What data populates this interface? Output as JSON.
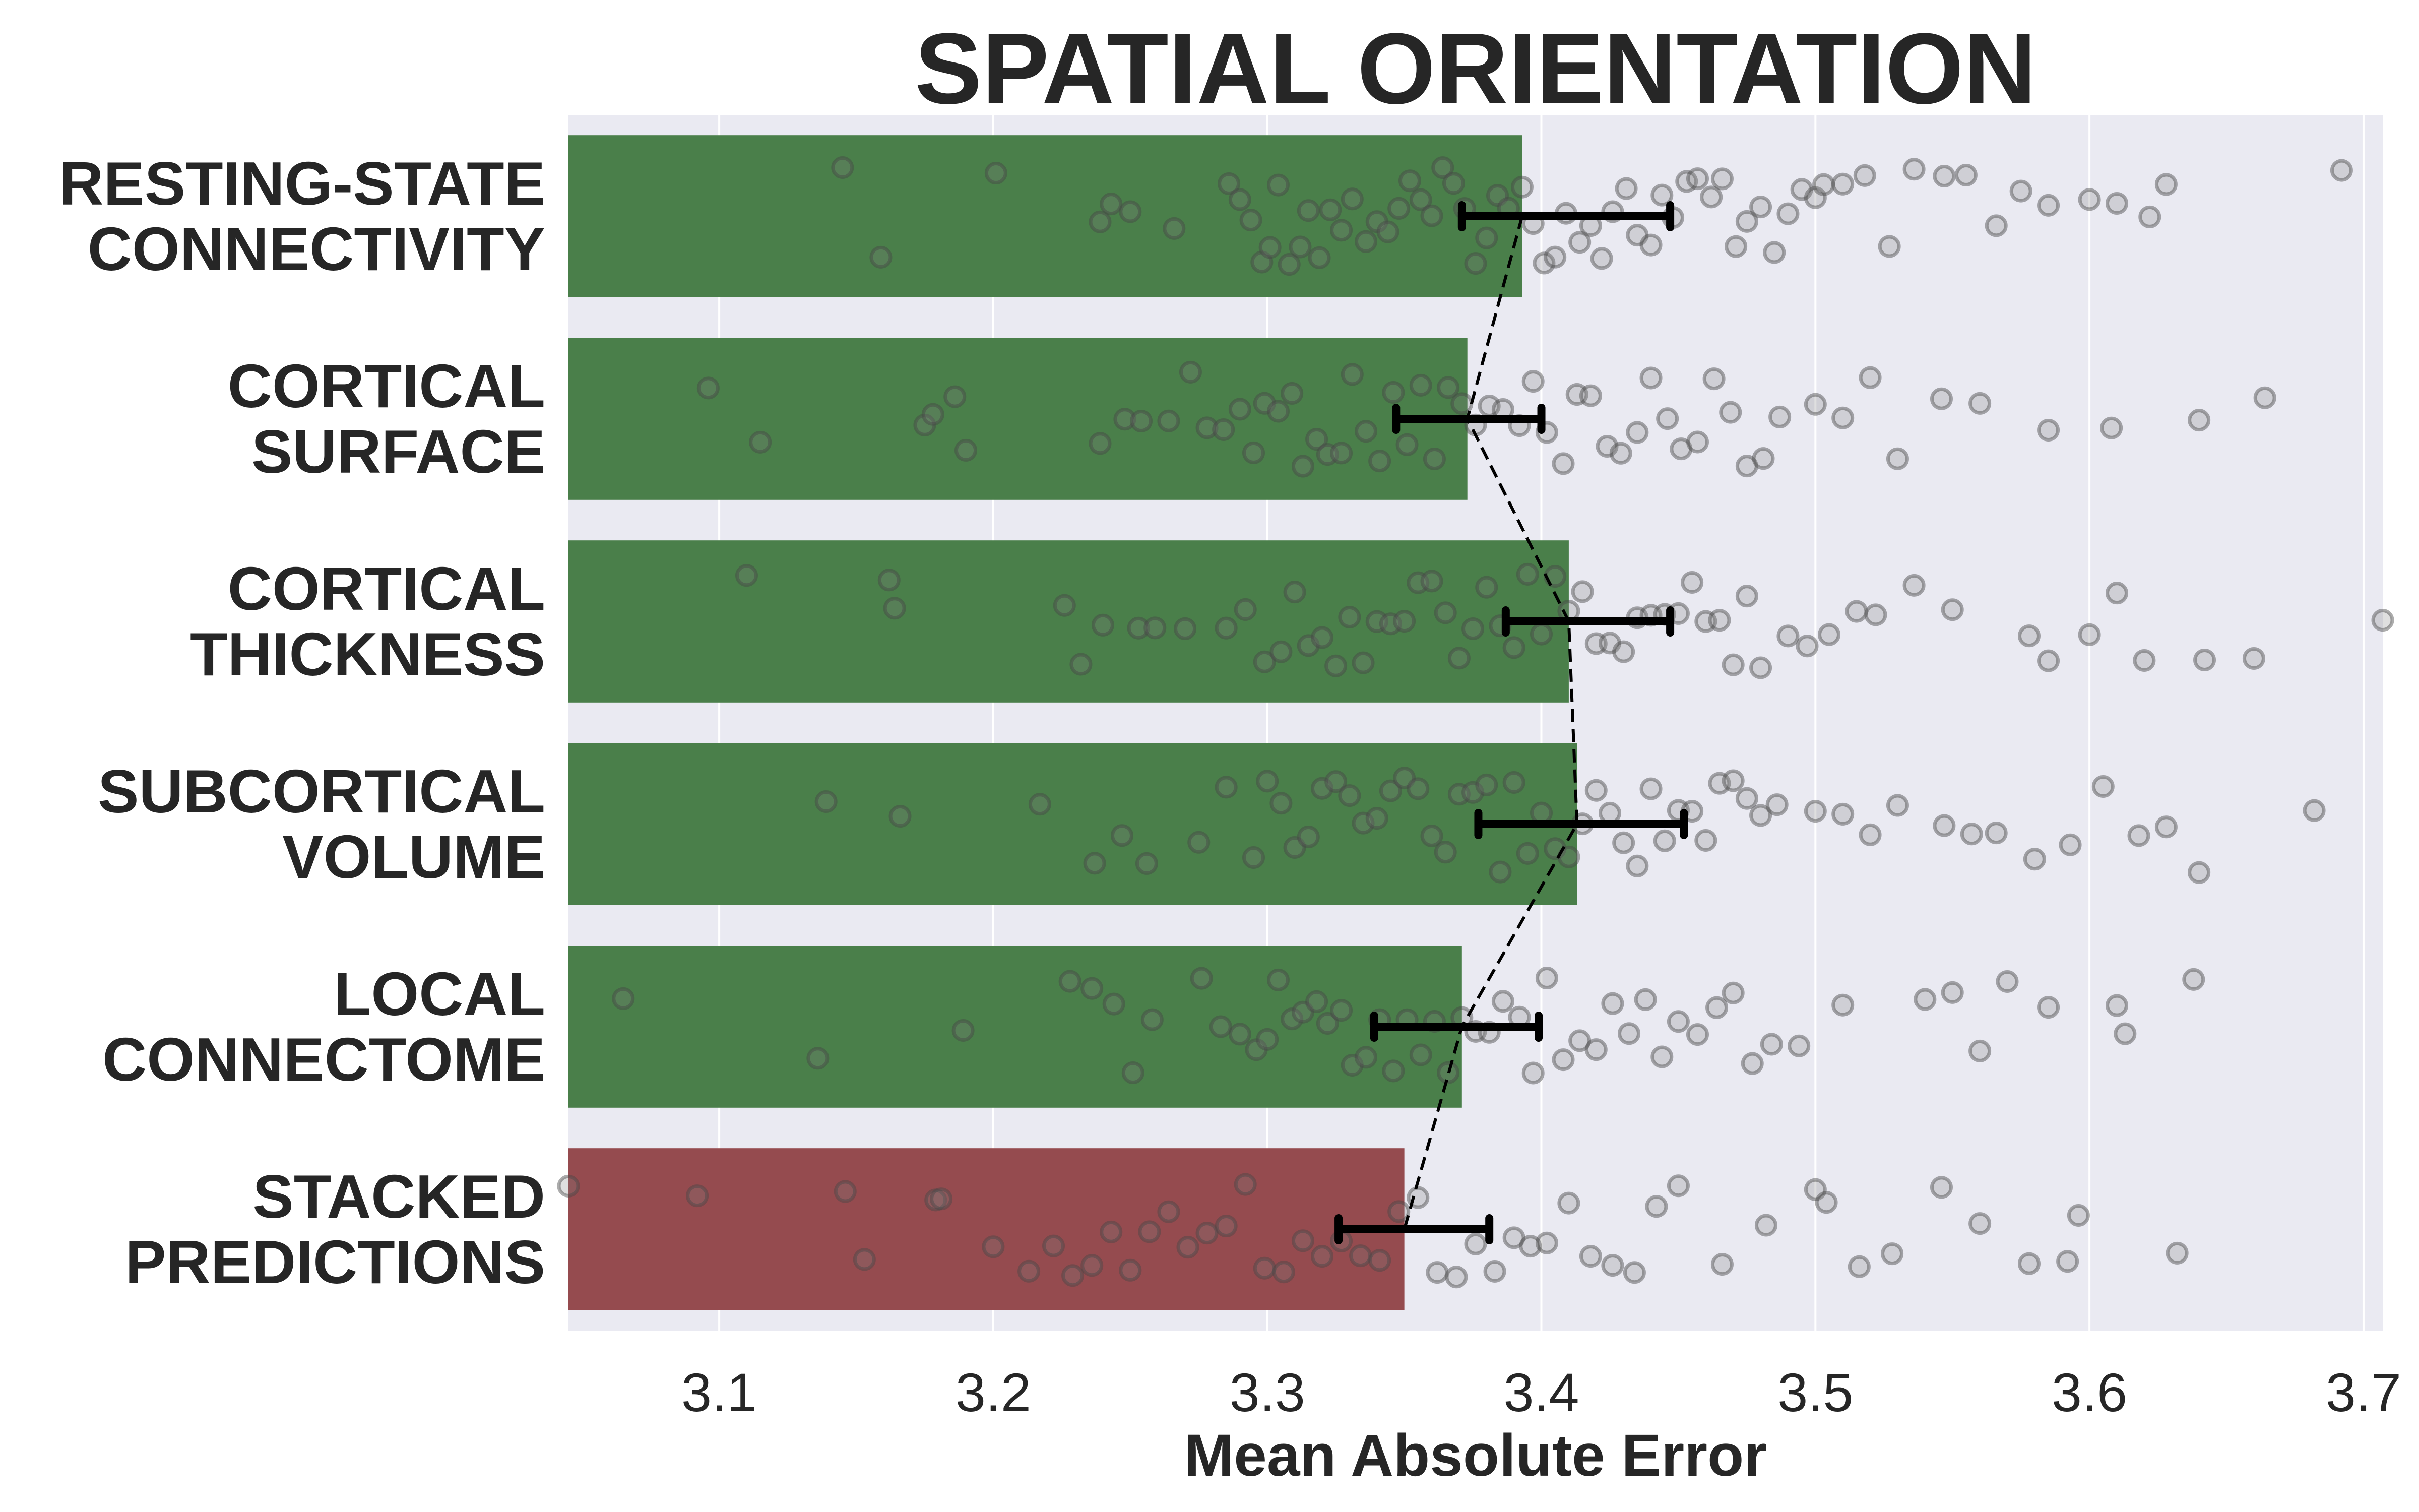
{
  "chart_data": {
    "type": "bar",
    "orientation": "horizontal",
    "title": "SPATIAL ORIENTATION",
    "xlabel": "Mean Absolute Error",
    "ylabel": "",
    "xlim": [
      3.045,
      3.707
    ],
    "xticks": [
      3.1,
      3.2,
      3.3,
      3.4,
      3.5,
      3.6,
      3.7
    ],
    "xtick_labels": [
      "3.1",
      "3.2",
      "3.3",
      "3.4",
      "3.5",
      "3.6",
      "3.7"
    ],
    "grid": true,
    "categories": [
      [
        "RESTING-STATE",
        "CONNECTIVITY"
      ],
      [
        "CORTICAL",
        "SURFACE"
      ],
      [
        "CORTICAL",
        "THICKNESS"
      ],
      [
        "SUBCORTICAL",
        "VOLUME"
      ],
      [
        "LOCAL",
        "CONNECTOME"
      ],
      [
        "STACKED",
        "PREDICTIONS"
      ]
    ],
    "values": [
      3.393,
      3.373,
      3.41,
      3.413,
      3.371,
      3.35
    ],
    "bar_colors": [
      "#4a7f4a",
      "#4a7f4a",
      "#4a7f4a",
      "#4a7f4a",
      "#4a7f4a",
      "#954b4f"
    ],
    "error_bars": [
      {
        "low": 3.371,
        "high": 3.447
      },
      {
        "low": 3.347,
        "high": 3.4
      },
      {
        "low": 3.387,
        "high": 3.447
      },
      {
        "low": 3.377,
        "high": 3.452
      },
      {
        "low": 3.339,
        "high": 3.399
      },
      {
        "low": 3.326,
        "high": 3.381
      }
    ],
    "error_bar_center_line": "dashed",
    "scatter_points": [
      [
        3.145,
        3.159,
        3.201,
        3.239,
        3.243,
        3.25,
        3.266,
        3.286,
        3.29,
        3.294,
        3.298,
        3.301,
        3.304,
        3.308,
        3.312,
        3.315,
        3.319,
        3.323,
        3.327,
        3.331,
        3.336,
        3.34,
        3.344,
        3.348,
        3.352,
        3.356,
        3.36,
        3.364,
        3.368,
        3.372,
        3.376,
        3.38,
        3.384,
        3.388,
        3.393,
        3.397,
        3.401,
        3.405,
        3.409,
        3.414,
        3.418,
        3.422,
        3.426,
        3.431,
        3.435,
        3.44,
        3.444,
        3.448,
        3.453,
        3.457,
        3.462,
        3.466,
        3.471,
        3.475,
        3.48,
        3.485,
        3.49,
        3.495,
        3.5,
        3.503,
        3.51,
        3.518,
        3.527,
        3.536,
        3.547,
        3.555,
        3.566,
        3.575,
        3.585,
        3.6,
        3.61,
        3.622,
        3.628,
        3.692
      ],
      [
        3.096,
        3.115,
        3.175,
        3.178,
        3.186,
        3.19,
        3.239,
        3.248,
        3.254,
        3.264,
        3.272,
        3.278,
        3.284,
        3.29,
        3.295,
        3.299,
        3.304,
        3.309,
        3.313,
        3.318,
        3.322,
        3.327,
        3.331,
        3.336,
        3.341,
        3.346,
        3.351,
        3.356,
        3.361,
        3.366,
        3.371,
        3.376,
        3.381,
        3.386,
        3.392,
        3.397,
        3.402,
        3.408,
        3.413,
        3.418,
        3.424,
        3.429,
        3.435,
        3.44,
        3.446,
        3.451,
        3.457,
        3.463,
        3.469,
        3.475,
        3.481,
        3.487,
        3.5,
        3.51,
        3.52,
        3.53,
        3.546,
        3.56,
        3.585,
        3.608,
        3.64,
        3.664
      ],
      [
        3.11,
        3.162,
        3.164,
        3.226,
        3.232,
        3.24,
        3.253,
        3.259,
        3.27,
        3.285,
        3.292,
        3.299,
        3.305,
        3.31,
        3.315,
        3.32,
        3.325,
        3.33,
        3.335,
        3.34,
        3.345,
        3.35,
        3.355,
        3.36,
        3.365,
        3.37,
        3.375,
        3.38,
        3.385,
        3.39,
        3.395,
        3.4,
        3.405,
        3.41,
        3.415,
        3.42,
        3.425,
        3.43,
        3.435,
        3.44,
        3.445,
        3.45,
        3.455,
        3.46,
        3.465,
        3.47,
        3.475,
        3.48,
        3.49,
        3.497,
        3.505,
        3.515,
        3.522,
        3.536,
        3.55,
        3.578,
        3.585,
        3.6,
        3.61,
        3.62,
        3.642,
        3.66,
        3.707
      ],
      [
        3.139,
        3.166,
        3.217,
        3.237,
        3.247,
        3.256,
        3.275,
        3.285,
        3.295,
        3.3,
        3.305,
        3.31,
        3.315,
        3.32,
        3.325,
        3.33,
        3.335,
        3.34,
        3.345,
        3.35,
        3.355,
        3.36,
        3.365,
        3.37,
        3.375,
        3.38,
        3.385,
        3.39,
        3.395,
        3.4,
        3.405,
        3.41,
        3.415,
        3.42,
        3.425,
        3.43,
        3.435,
        3.44,
        3.445,
        3.45,
        3.455,
        3.46,
        3.465,
        3.47,
        3.475,
        3.48,
        3.486,
        3.5,
        3.51,
        3.52,
        3.53,
        3.547,
        3.557,
        3.566,
        3.58,
        3.593,
        3.605,
        3.618,
        3.628,
        3.64,
        3.682
      ],
      [
        3.065,
        3.136,
        3.189,
        3.228,
        3.236,
        3.244,
        3.251,
        3.258,
        3.276,
        3.283,
        3.29,
        3.296,
        3.3,
        3.304,
        3.309,
        3.313,
        3.318,
        3.322,
        3.327,
        3.331,
        3.336,
        3.341,
        3.346,
        3.351,
        3.356,
        3.361,
        3.366,
        3.371,
        3.376,
        3.381,
        3.386,
        3.392,
        3.397,
        3.402,
        3.408,
        3.414,
        3.42,
        3.426,
        3.432,
        3.438,
        3.444,
        3.45,
        3.457,
        3.464,
        3.47,
        3.477,
        3.484,
        3.494,
        3.51,
        3.54,
        3.55,
        3.56,
        3.57,
        3.585,
        3.61,
        3.613,
        3.638
      ],
      [
        3.045,
        3.092,
        3.146,
        3.153,
        3.179,
        3.181,
        3.2,
        3.213,
        3.222,
        3.229,
        3.236,
        3.243,
        3.25,
        3.257,
        3.264,
        3.271,
        3.278,
        3.285,
        3.292,
        3.299,
        3.306,
        3.313,
        3.32,
        3.327,
        3.334,
        3.341,
        3.348,
        3.355,
        3.362,
        3.369,
        3.376,
        3.383,
        3.39,
        3.396,
        3.402,
        3.41,
        3.418,
        3.426,
        3.434,
        3.442,
        3.45,
        3.466,
        3.482,
        3.5,
        3.504,
        3.516,
        3.528,
        3.546,
        3.56,
        3.578,
        3.592,
        3.596,
        3.632
      ]
    ]
  }
}
